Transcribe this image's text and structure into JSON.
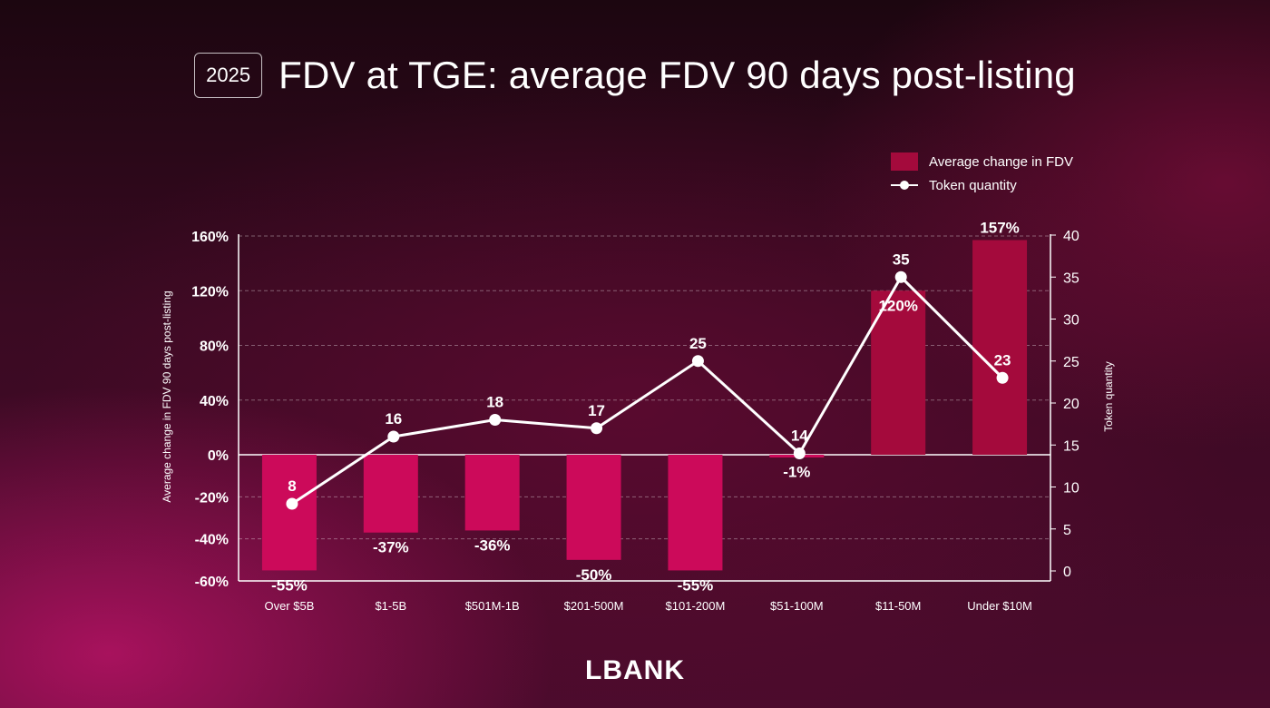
{
  "header": {
    "year": "2025",
    "title": "FDV at TGE: average FDV 90 days post-listing"
  },
  "logo": "LBANK",
  "colors": {
    "bar_positive": "#a40a3c",
    "bar_negative": "#cc0a5a",
    "line": "#ffffff",
    "grid": "rgba(255,255,255,0.35)"
  },
  "chart_data": {
    "type": "bar",
    "categories": [
      "Over $5B",
      "$1-5B",
      "$501M-1B",
      "$201-500M",
      "$101-200M",
      "$51-100M",
      "$11-50M",
      "Under $10M"
    ],
    "series": [
      {
        "name": "Average change in FDV",
        "type": "bar",
        "axis": "left",
        "values": [
          -55,
          -37,
          -36,
          -50,
          -55,
          -1,
          120,
          157
        ],
        "labels": [
          "-55%",
          "-37%",
          "-36%",
          "-50%",
          "-55%",
          "-1%",
          "120%",
          "157%"
        ]
      },
      {
        "name": "Token quantity",
        "type": "line",
        "axis": "right",
        "values": [
          8,
          16,
          18,
          17,
          25,
          14,
          35,
          23
        ],
        "labels": [
          "8",
          "16",
          "18",
          "17",
          "25",
          "14",
          "35",
          "23"
        ]
      }
    ],
    "ylabel": "Average change in FDV 90 days post-listing",
    "y2label": "Token quantity",
    "left_ticks": [
      160,
      120,
      80,
      40,
      0,
      -20,
      -40,
      -60
    ],
    "left_tick_labels": [
      "160%",
      "120%",
      "80%",
      "40%",
      "0%",
      "-20%",
      "-40%",
      "-60%"
    ],
    "right_ticks": [
      40,
      35,
      30,
      25,
      20,
      15,
      10,
      5,
      0
    ],
    "right_tick_labels": [
      "40",
      "35",
      "30",
      "25",
      "20",
      "15",
      "10",
      "5",
      "0"
    ],
    "ylim": [
      -60,
      160
    ],
    "y2lim": [
      0,
      40
    ],
    "grid": true,
    "legend": "top-right"
  }
}
